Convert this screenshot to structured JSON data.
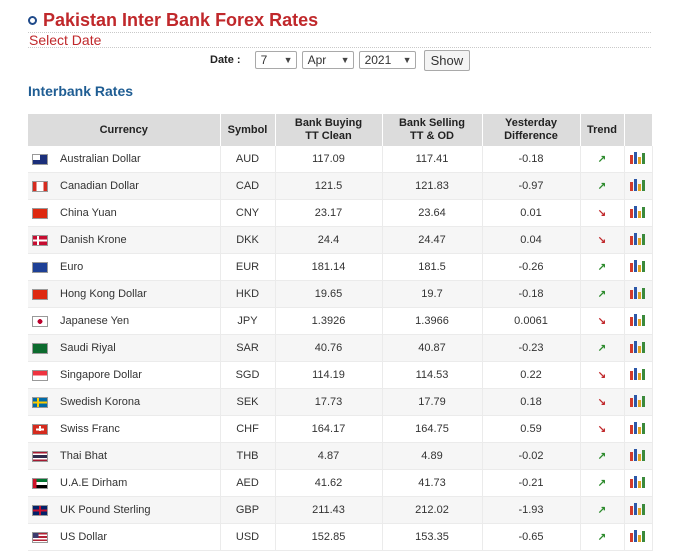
{
  "page": {
    "title": "Pakistan Inter Bank Forex Rates",
    "select_date_label": "Select Date",
    "section_title": "Interbank Rates"
  },
  "date_picker": {
    "label": "Date :",
    "day": "7",
    "month": "Apr",
    "year": "2021",
    "show_label": "Show"
  },
  "table": {
    "headers": {
      "currency": "Currency",
      "symbol": "Symbol",
      "buying_1": "Bank Buying",
      "buying_2": "TT Clean",
      "selling_1": "Bank Selling",
      "selling_2": "TT & OD",
      "diff_1": "Yesterday",
      "diff_2": "Difference",
      "trend": "Trend"
    },
    "rows": [
      {
        "currency": "Australian Dollar",
        "symbol": "AUD",
        "buying": "117.09",
        "selling": "117.41",
        "diff": "-0.18",
        "trend": "up",
        "flag": "flag-au-icon"
      },
      {
        "currency": "Canadian Dollar",
        "symbol": "CAD",
        "buying": "121.5",
        "selling": "121.83",
        "diff": "-0.97",
        "trend": "up",
        "flag": "flag-ca-icon"
      },
      {
        "currency": "China Yuan",
        "symbol": "CNY",
        "buying": "23.17",
        "selling": "23.64",
        "diff": "0.01",
        "trend": "down",
        "flag": "flag-cn-icon"
      },
      {
        "currency": "Danish Krone",
        "symbol": "DKK",
        "buying": "24.4",
        "selling": "24.47",
        "diff": "0.04",
        "trend": "down",
        "flag": "flag-dk-icon"
      },
      {
        "currency": "Euro",
        "symbol": "EUR",
        "buying": "181.14",
        "selling": "181.5",
        "diff": "-0.26",
        "trend": "up",
        "flag": "flag-eu-icon"
      },
      {
        "currency": "Hong Kong Dollar",
        "symbol": "HKD",
        "buying": "19.65",
        "selling": "19.7",
        "diff": "-0.18",
        "trend": "up",
        "flag": "flag-hk-icon"
      },
      {
        "currency": "Japanese Yen",
        "symbol": "JPY",
        "buying": "1.3926",
        "selling": "1.3966",
        "diff": "0.0061",
        "trend": "down",
        "flag": "flag-jp-icon"
      },
      {
        "currency": "Saudi Riyal",
        "symbol": "SAR",
        "buying": "40.76",
        "selling": "40.87",
        "diff": "-0.23",
        "trend": "up",
        "flag": "flag-sa-icon"
      },
      {
        "currency": "Singapore Dollar",
        "symbol": "SGD",
        "buying": "114.19",
        "selling": "114.53",
        "diff": "0.22",
        "trend": "down",
        "flag": "flag-sg-icon"
      },
      {
        "currency": "Swedish Korona",
        "symbol": "SEK",
        "buying": "17.73",
        "selling": "17.79",
        "diff": "0.18",
        "trend": "down",
        "flag": "flag-se-icon"
      },
      {
        "currency": "Swiss Franc",
        "symbol": "CHF",
        "buying": "164.17",
        "selling": "164.75",
        "diff": "0.59",
        "trend": "down",
        "flag": "flag-ch-icon"
      },
      {
        "currency": "Thai Bhat",
        "symbol": "THB",
        "buying": "4.87",
        "selling": "4.89",
        "diff": "-0.02",
        "trend": "up",
        "flag": "flag-th-icon"
      },
      {
        "currency": "U.A.E Dirham",
        "symbol": "AED",
        "buying": "41.62",
        "selling": "41.73",
        "diff": "-0.21",
        "trend": "up",
        "flag": "flag-ae-icon"
      },
      {
        "currency": "UK Pound Sterling",
        "symbol": "GBP",
        "buying": "211.43",
        "selling": "212.02",
        "diff": "-1.93",
        "trend": "up",
        "flag": "flag-gb-icon"
      },
      {
        "currency": "US Dollar",
        "symbol": "USD",
        "buying": "152.85",
        "selling": "153.35",
        "diff": "-0.65",
        "trend": "up",
        "flag": "flag-us-icon"
      }
    ]
  },
  "colors": {
    "title_red": "#c0282b",
    "section_blue": "#1f5d93",
    "trend_up": "#2b8a2b",
    "trend_down": "#c0282b"
  }
}
